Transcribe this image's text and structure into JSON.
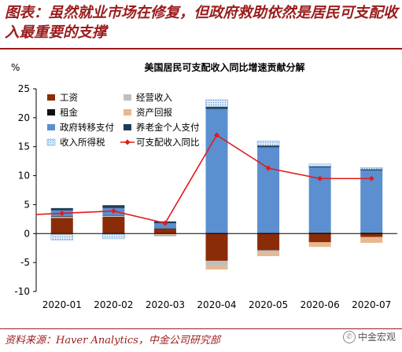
{
  "page": {
    "title": "图表：虽然就业市场在修复，但政府救助依然是居民可支配收入最重要的支撑",
    "source": "资料来源：Haver Analytics，中金公司研究部",
    "watermark": "中金宏观"
  },
  "chart_data": {
    "type": "bar",
    "stacked": true,
    "title": "美国居民可支配收入同比增速贡献分解",
    "ylabel": "%",
    "ylim": [
      -10,
      25
    ],
    "yticks": [
      -10,
      -5,
      0,
      5,
      10,
      15,
      20,
      25
    ],
    "grid": false,
    "legend_position": "top-left",
    "categories": [
      "2020-01",
      "2020-02",
      "2020-03",
      "2020-04",
      "2020-05",
      "2020-06",
      "2020-07"
    ],
    "series": [
      {
        "name": "工资",
        "color": "#8b2c08",
        "pattern": "solid",
        "values": [
          2.7,
          2.9,
          0.8,
          -4.7,
          -2.9,
          -1.5,
          -0.6
        ]
      },
      {
        "name": "经营收入",
        "color": "#bfbfbf",
        "pattern": "solid",
        "values": [
          0.2,
          0.2,
          -0.1,
          -0.9,
          -0.4,
          0.1,
          0.1
        ]
      },
      {
        "name": "租金",
        "color": "#111111",
        "pattern": "solid",
        "values": [
          0.1,
          0.1,
          0.1,
          0.1,
          0.1,
          0.1,
          0.1
        ]
      },
      {
        "name": "资产回报",
        "color": "#e9b88d",
        "pattern": "solid",
        "values": [
          -0.2,
          -0.1,
          -0.2,
          -0.6,
          -0.6,
          -0.8,
          -1.0
        ]
      },
      {
        "name": "政府转移支付",
        "color": "#5b8fd0",
        "pattern": "solid",
        "values": [
          1.0,
          1.2,
          0.9,
          21.4,
          14.8,
          11.2,
          10.7
        ]
      },
      {
        "name": "养老金个人支付",
        "color": "#1f3c5a",
        "pattern": "solid",
        "values": [
          0.4,
          0.5,
          0.3,
          0.4,
          0.3,
          0.2,
          0.2
        ]
      },
      {
        "name": "收入所得税",
        "color": "#d9e9f7",
        "pattern": "dotted",
        "values": [
          -0.9,
          -0.8,
          -0.1,
          1.2,
          0.8,
          0.4,
          0.3
        ]
      }
    ],
    "line": {
      "name": "可支配收入同比",
      "color": "#e31a1c",
      "values": [
        3.5,
        3.9,
        1.8,
        17.0,
        11.3,
        9.5,
        9.5
      ]
    }
  }
}
